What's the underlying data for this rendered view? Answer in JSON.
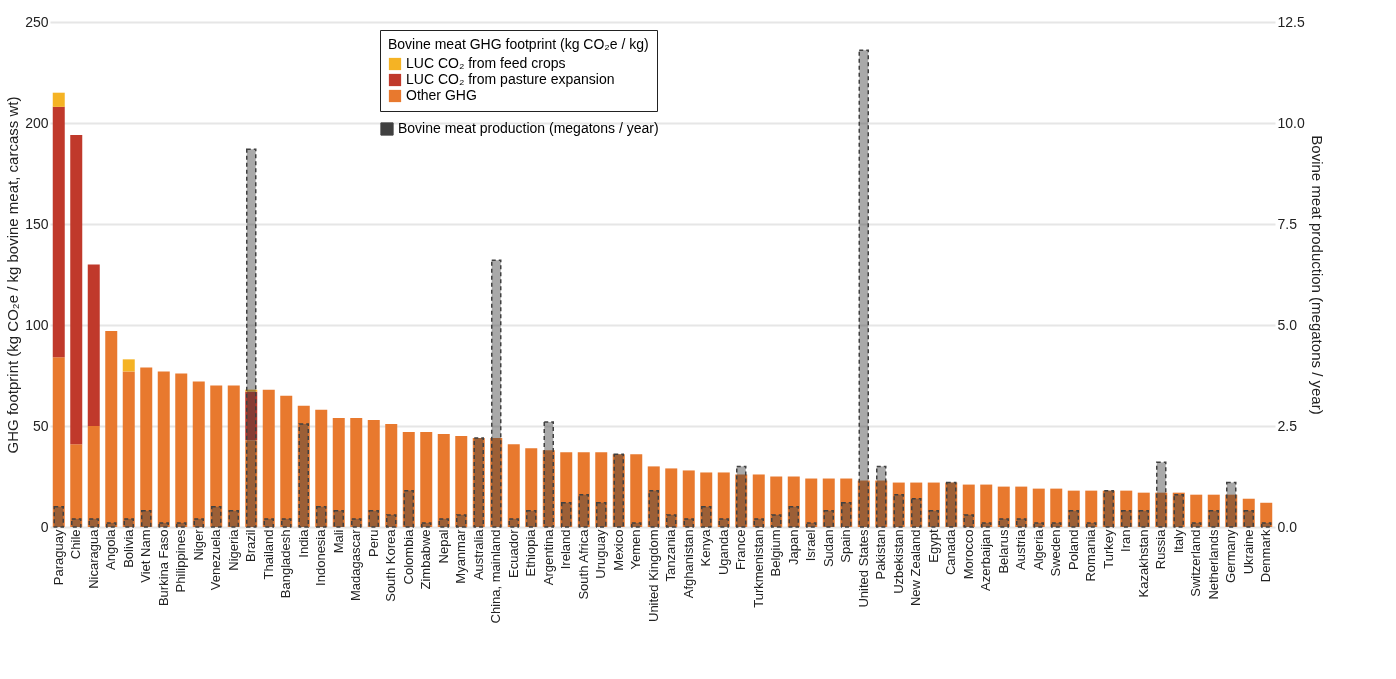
{
  "chart_data": {
    "type": "bar",
    "stacked": true,
    "ylabel": "GHG footprint (kg CO₂e / kg bovine meat, carcass wt)",
    "y2label": "Bovine meat production (megatons / year)",
    "legend_title": "Bovine meat GHG footprint (kg CO₂e / kg)",
    "categories": [
      "Paraguay",
      "Chile",
      "Nicaragua",
      "Angola",
      "Bolivia",
      "Viet Nam",
      "Burkina Faso",
      "Philippines",
      "Niger",
      "Venezuela",
      "Nigeria",
      "Brazil",
      "Thailand",
      "Bangladesh",
      "India",
      "Indonesia",
      "Mali",
      "Madagascar",
      "Peru",
      "South Korea",
      "Colombia",
      "Zimbabwe",
      "Nepal",
      "Myanmar",
      "Australia",
      "China, mainland",
      "Ecuador",
      "Ethiopia",
      "Argentina",
      "Ireland",
      "South Africa",
      "Uruguay",
      "Mexico",
      "Yemen",
      "United Kingdom",
      "Tanzania",
      "Afghanistan",
      "Kenya",
      "Uganda",
      "France",
      "Turkmenistan",
      "Belgium",
      "Japan",
      "Israel",
      "Sudan",
      "Spain",
      "United States",
      "Pakistan",
      "Uzbekistan",
      "New Zealand",
      "Egypt",
      "Canada",
      "Morocco",
      "Azerbaijan",
      "Belarus",
      "Austria",
      "Algeria",
      "Sweden",
      "Poland",
      "Romania",
      "Turkey",
      "Iran",
      "Kazakhstan",
      "Russia",
      "Italy",
      "Switzerland",
      "Netherlands",
      "Germany",
      "Ukraine",
      "Denmark"
    ],
    "series": [
      {
        "name": "Other GHG",
        "color": "#e8792e",
        "values": [
          84,
          41,
          50,
          97,
          77,
          79,
          77,
          76,
          72,
          70,
          70,
          43,
          68,
          65,
          60,
          58,
          54,
          54,
          53,
          51,
          47,
          47,
          46,
          45,
          44,
          44,
          41,
          39,
          38,
          37,
          37,
          37,
          36,
          36,
          30,
          29,
          28,
          27,
          27,
          26,
          26,
          25,
          25,
          24,
          24,
          24,
          23,
          23,
          22,
          22,
          22,
          22,
          21,
          21,
          20,
          20,
          19,
          19,
          18,
          18,
          18,
          18,
          17,
          17,
          17,
          16,
          16,
          16,
          14,
          12
        ]
      },
      {
        "name": "LUC CO₂ from pasture expansion",
        "color": "#c0392b",
        "values": [
          124,
          153,
          80,
          0,
          0,
          0,
          0,
          0,
          0,
          0,
          0,
          24,
          0,
          0,
          0,
          0,
          0,
          0,
          0,
          0,
          0,
          0,
          0,
          0,
          0,
          0,
          0,
          0,
          0,
          0,
          0,
          0,
          0,
          0,
          0,
          0,
          0,
          0,
          0,
          0,
          0,
          0,
          0,
          0,
          0,
          0,
          0,
          0,
          0,
          0,
          0,
          0,
          0,
          0,
          0,
          0,
          0,
          0,
          0,
          0,
          0,
          0,
          0,
          0,
          0,
          0,
          0,
          0,
          0,
          0
        ]
      },
      {
        "name": "LUC CO₂ from feed crops",
        "color": "#f5b324",
        "values": [
          7,
          0,
          0,
          0,
          6,
          0,
          0,
          0,
          0,
          0,
          0,
          1,
          0,
          0,
          0,
          0,
          0,
          0,
          0,
          0,
          0,
          0,
          0,
          0,
          0,
          0,
          0,
          0,
          0,
          0,
          0,
          0,
          0,
          0,
          0,
          0,
          0,
          0,
          0,
          0,
          0,
          0,
          0,
          0,
          0,
          0,
          0,
          0,
          0,
          0,
          0,
          0,
          0,
          0,
          0,
          0,
          0,
          0,
          0,
          0,
          0,
          0,
          0,
          0,
          0,
          0,
          0,
          0,
          0,
          0
        ]
      },
      {
        "name": "Bovine meat production (megatons / year)",
        "type": "bar",
        "axis": "y2",
        "color": "#404040",
        "values": [
          0.5,
          0.2,
          0.2,
          0.1,
          0.2,
          0.4,
          0.1,
          0.1,
          0.2,
          0.5,
          0.4,
          9.35,
          0.2,
          0.2,
          2.55,
          0.5,
          0.4,
          0.2,
          0.4,
          0.3,
          0.9,
          0.1,
          0.2,
          0.3,
          2.2,
          6.6,
          0.2,
          0.4,
          2.6,
          0.6,
          0.8,
          0.6,
          1.8,
          0.1,
          0.9,
          0.3,
          0.2,
          0.5,
          0.2,
          1.5,
          0.2,
          0.3,
          0.5,
          0.1,
          0.4,
          0.6,
          11.8,
          1.5,
          0.8,
          0.7,
          0.4,
          1.1,
          0.3,
          0.1,
          0.2,
          0.2,
          0.1,
          0.1,
          0.4,
          0.1,
          0.9,
          0.4,
          0.4,
          1.6,
          0.8,
          0.1,
          0.4,
          1.1,
          0.4,
          0.1
        ]
      }
    ],
    "ylim": [
      0,
      250
    ],
    "yticks": [
      0,
      50,
      100,
      150,
      200,
      250
    ],
    "y2lim": [
      0,
      12.5
    ],
    "y2ticks": [
      {
        "value": 0,
        "label": "0.0"
      },
      {
        "value": 2.5,
        "label": "2.5"
      },
      {
        "value": 5,
        "label": "5.0"
      },
      {
        "value": 7.5,
        "label": "7.5"
      },
      {
        "value": 10,
        "label": "10.0"
      },
      {
        "value": 12.5,
        "label": "12.5"
      }
    ],
    "grid": "y",
    "legend": "top"
  }
}
